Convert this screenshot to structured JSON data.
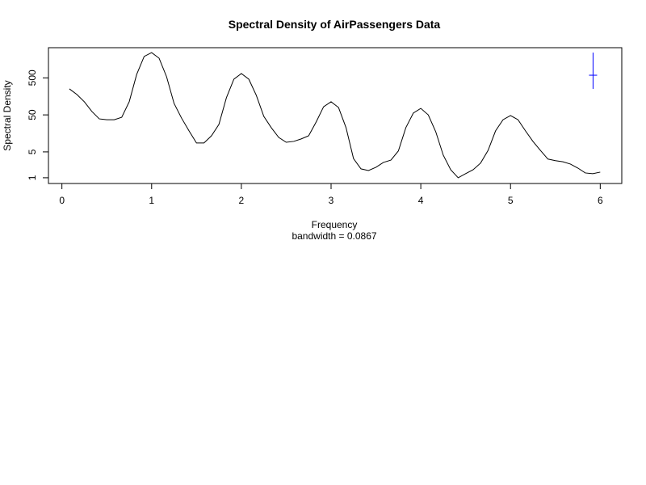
{
  "chart_data": {
    "type": "line",
    "title": "Spectral Density of AirPassengers Data",
    "xlabel": "Frequency",
    "subtitle": "bandwidth = 0.0867",
    "ylabel": "Spectral Density",
    "log_y": true,
    "color": "#000000",
    "x": [
      0.0833,
      0.1667,
      0.25,
      0.3333,
      0.4167,
      0.5,
      0.5833,
      0.6667,
      0.75,
      0.8333,
      0.9167,
      1.0,
      1.0833,
      1.1667,
      1.25,
      1.3333,
      1.4167,
      1.5,
      1.5833,
      1.6667,
      1.75,
      1.8333,
      1.9167,
      2.0,
      2.0833,
      2.1667,
      2.25,
      2.3333,
      2.4167,
      2.5,
      2.5833,
      2.6667,
      2.75,
      2.8333,
      2.9167,
      3.0,
      3.0833,
      3.1667,
      3.25,
      3.3333,
      3.4167,
      3.5,
      3.5833,
      3.6667,
      3.75,
      3.8333,
      3.9167,
      4.0,
      4.0833,
      4.1667,
      4.25,
      4.3333,
      4.4167,
      4.5,
      4.5833,
      4.6667,
      4.75,
      4.8333,
      4.9167,
      5.0,
      5.0833,
      5.1667,
      5.25,
      5.3333,
      5.4167,
      5.5,
      5.5833,
      5.6667,
      5.75,
      5.8333,
      5.9167,
      6.0
    ],
    "values": [
      252,
      178,
      113,
      62,
      39,
      37,
      37,
      43,
      113,
      620,
      1900,
      2410,
      1700,
      535,
      102,
      41,
      18.5,
      8.7,
      8.7,
      13.6,
      27.6,
      145,
      460,
      655,
      460,
      169,
      45.6,
      22.6,
      12.3,
      9.1,
      9.6,
      11.2,
      13.6,
      32,
      83,
      113,
      79,
      22.6,
      3.3,
      1.74,
      1.57,
      1.92,
      2.6,
      3.0,
      5.3,
      22.6,
      56,
      75,
      50,
      17.5,
      4.1,
      1.65,
      1.0,
      1.29,
      1.65,
      2.5,
      5.5,
      18.5,
      37,
      48,
      37,
      18.5,
      9.6,
      5.5,
      3.2,
      2.9,
      2.7,
      2.35,
      1.83,
      1.35,
      1.29,
      1.42
    ],
    "ci": {
      "x": 5.92,
      "center": 590,
      "lower": 252,
      "upper": 2410,
      "color": "#0000ff"
    },
    "xlim": [
      -0.15,
      6.24
    ],
    "xticks": [
      0,
      1,
      2,
      3,
      4,
      5,
      6
    ],
    "ylim": [
      0.7,
      3270
    ],
    "yticks": [
      1,
      5,
      50,
      500
    ]
  }
}
